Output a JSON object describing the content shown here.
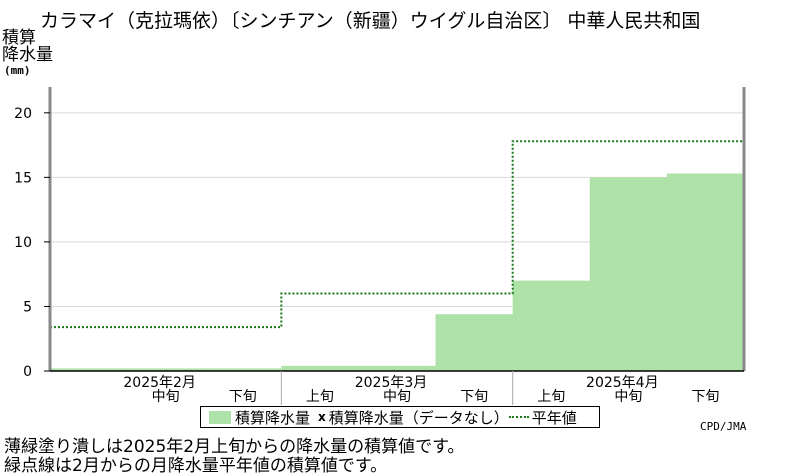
{
  "header": {
    "title": "カラマイ（克拉瑪依）〔シンチアン（新疆）ウイグル自治区〕 中華人民共和国",
    "ylabel_line1": "積算",
    "ylabel_line2": "降水量",
    "yunit": "(mm)"
  },
  "chart_data": {
    "type": "bar",
    "categories": [
      "2025年2月 上旬",
      "2025年2月 中旬",
      "2025年2月 下旬",
      "2025年3月 上旬",
      "2025年3月 中旬",
      "2025年3月 下旬",
      "2025年4月 上旬",
      "2025年4月 中旬",
      "2025年4月 下旬"
    ],
    "month_labels": [
      "2025年2月",
      "2025年3月",
      "2025年4月"
    ],
    "decade_labels": [
      "中旬",
      "下旬",
      "上旬",
      "中旬",
      "下旬",
      "上旬",
      "中旬",
      "下旬"
    ],
    "series": [
      {
        "name": "積算降水量",
        "color": "#aee2a8",
        "values": [
          0.2,
          0.2,
          0.2,
          0.4,
          0.4,
          4.4,
          7.0,
          15.0,
          15.3
        ]
      },
      {
        "name": "平年値",
        "color": "#1a7a1a",
        "values": [
          3.4,
          3.4,
          3.4,
          6.0,
          6.0,
          6.0,
          17.8,
          17.8,
          17.8
        ]
      }
    ],
    "missing_marker_series": {
      "name": "積算降水量（データなし）",
      "marker": "x"
    },
    "ylim": [
      0,
      22
    ],
    "yticks": [
      0,
      5,
      10,
      15,
      20
    ],
    "grid": true
  },
  "legend": {
    "item1": "積算降水量",
    "item2_marker": "x",
    "item2": "積算降水量（データなし）",
    "item3": "平年値"
  },
  "footer": {
    "credit": "CPD/JMA",
    "note1": "薄緑塗り潰しは2025年2月上旬からの降水量の積算値です。",
    "note2": "緑点線は2月からの月降水量平年値の積算値です。"
  }
}
